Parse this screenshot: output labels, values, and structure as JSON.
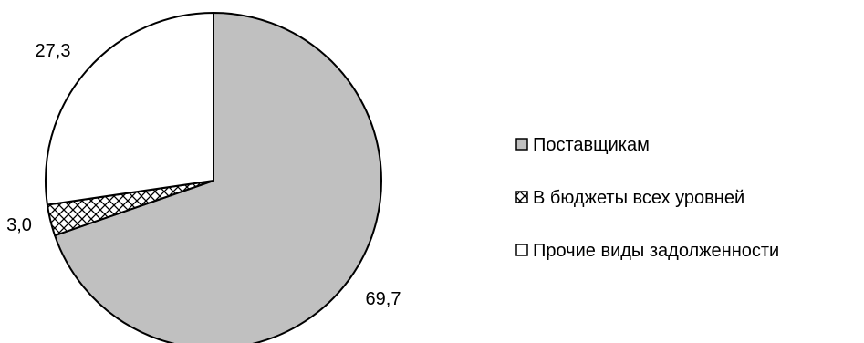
{
  "chart_data": {
    "type": "pie",
    "title": "",
    "categories": [
      "Поставщикам",
      "В бюджеты всех уровней",
      "Прочие виды задолженности"
    ],
    "values": [
      69.7,
      3.0,
      27.3
    ],
    "data_labels": [
      "69,7",
      "3,0",
      "27,3"
    ],
    "fills": [
      "#c0c0c0",
      "crosshatch",
      "#ffffff"
    ],
    "start_angle_deg": 0,
    "direction": "clockwise",
    "legend_placement": "right",
    "legend": [
      {
        "label": "Поставщикам",
        "fill": "#c0c0c0"
      },
      {
        "label": "В бюджеты всех уровней",
        "fill": "crosshatch"
      },
      {
        "label": "Прочие виды задолженности",
        "fill": "#ffffff"
      }
    ]
  }
}
